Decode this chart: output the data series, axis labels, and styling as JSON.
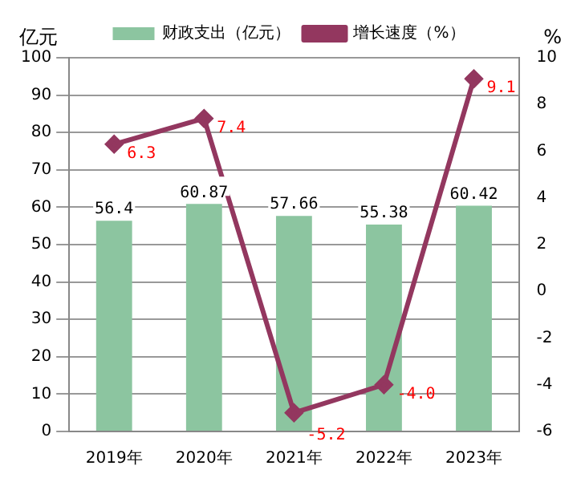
{
  "chart_data": {
    "type": "bar",
    "ylabel": "亿元",
    "y2label": "%",
    "categories": [
      "2019年",
      "2020年",
      "2021年",
      "2022年",
      "2023年"
    ],
    "series": [
      {
        "name": "财政支出（亿元）",
        "color": "#8cc5a0",
        "values": [
          56.4,
          60.87,
          57.66,
          55.38,
          60.42
        ],
        "value_labels": [
          "56.4",
          "60.87",
          "57.66",
          "55.38",
          "60.42"
        ]
      },
      {
        "name": "增长速度（%）",
        "type": "line",
        "axis": "y2",
        "color": "#93375f",
        "values": [
          6.3,
          7.4,
          -5.2,
          -4.0,
          9.1
        ],
        "value_labels": [
          "6.3",
          "7.4",
          "-5.2",
          "-4.0",
          "9.1"
        ]
      }
    ],
    "ylim": [
      0,
      100
    ],
    "yticks": [
      0,
      10,
      20,
      30,
      40,
      50,
      60,
      70,
      80,
      90,
      100
    ],
    "y2lim": [
      -6,
      10
    ],
    "y2ticks": [
      -6,
      -4,
      -2,
      0,
      2,
      4,
      6,
      8,
      10
    ],
    "grid": "y",
    "legend": "top",
    "marker": "diamond",
    "line_style": "solid"
  }
}
